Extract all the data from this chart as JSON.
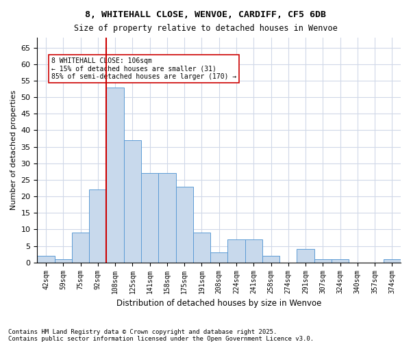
{
  "title1": "8, WHITEHALL CLOSE, WENVOE, CARDIFF, CF5 6DB",
  "title2": "Size of property relative to detached houses in Wenvoe",
  "xlabel": "Distribution of detached houses by size in Wenvoe",
  "ylabel": "Number of detached properties",
  "categories": [
    "42sqm",
    "59sqm",
    "75sqm",
    "92sqm",
    "108sqm",
    "125sqm",
    "141sqm",
    "158sqm",
    "175sqm",
    "191sqm",
    "208sqm",
    "224sqm",
    "241sqm",
    "258sqm",
    "274sqm",
    "291sqm",
    "307sqm",
    "324sqm",
    "340sqm",
    "357sqm",
    "374sqm"
  ],
  "values": [
    2,
    1,
    9,
    22,
    53,
    37,
    27,
    27,
    23,
    9,
    3,
    7,
    7,
    2,
    0,
    4,
    1,
    1,
    0,
    0,
    1
  ],
  "bar_color": "#c8d9ec",
  "bar_edge_color": "#5b9bd5",
  "property_line_x": 4,
  "property_line_color": "#cc0000",
  "annotation_text": "8 WHITEHALL CLOSE: 106sqm\n← 15% of detached houses are smaller (31)\n85% of semi-detached houses are larger (170) →",
  "annotation_box_color": "#ffffff",
  "annotation_box_edge": "#cc0000",
  "ylim": [
    0,
    68
  ],
  "yticks": [
    0,
    5,
    10,
    15,
    20,
    25,
    30,
    35,
    40,
    45,
    50,
    55,
    60,
    65
  ],
  "footer1": "Contains HM Land Registry data © Crown copyright and database right 2025.",
  "footer2": "Contains public sector information licensed under the Open Government Licence v3.0.",
  "background_color": "#ffffff",
  "grid_color": "#d0d8e8"
}
